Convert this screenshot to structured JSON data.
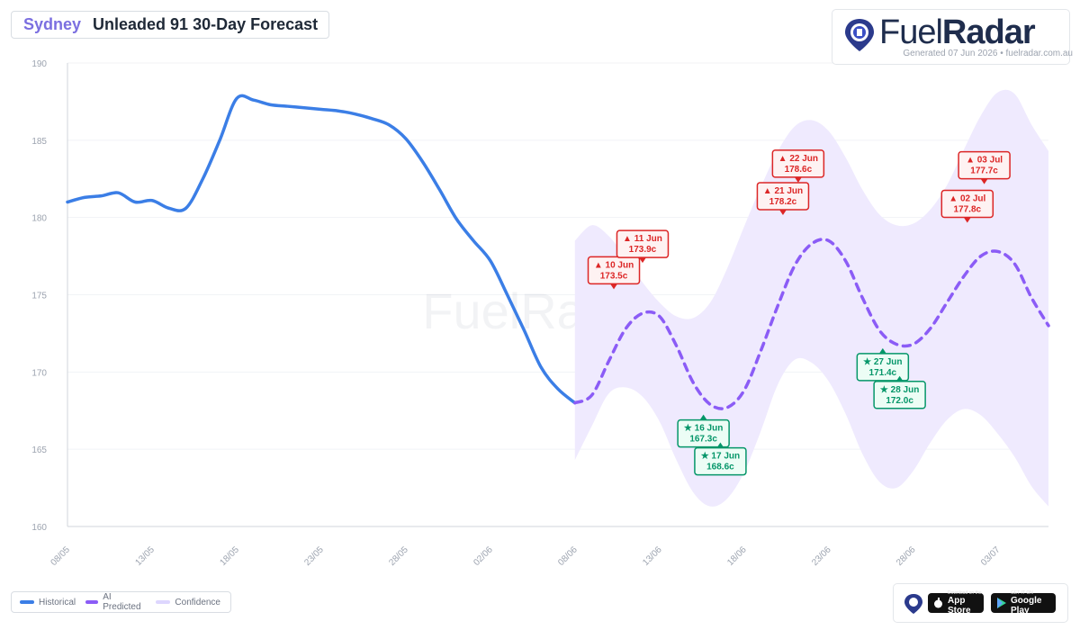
{
  "header": {
    "city": "Sydney",
    "title": "Unleaded 91 30-Day Forecast"
  },
  "brand": {
    "fuel": "Fuel",
    "radar": "Radar",
    "generated": "Generated 07 Jun 2026 • fuelradar.com.au"
  },
  "legend": [
    {
      "label": "Historical",
      "color": "#3b7ee6"
    },
    {
      "label": "AI Predicted",
      "color": "#8b5cf6"
    },
    {
      "label": "Confidence",
      "color": "#ddd6fe"
    }
  ],
  "stores": {
    "apple_small": "Download on the",
    "apple": "App Store",
    "google_small": "GET IT ON",
    "google": "Google Play"
  },
  "colors": {
    "historical": "#3b7ee6",
    "predicted": "#8b5cf6",
    "confidence": "#efeafe",
    "high": "#dc2626",
    "low": "#059669"
  },
  "chart_data": {
    "type": "line",
    "ylim": [
      160,
      190
    ],
    "yticks": [
      "190",
      "185",
      "180",
      "175",
      "170",
      "165",
      "160"
    ],
    "xlim": [
      0,
      58
    ],
    "xticks": [
      {
        "day": 0,
        "label": "08/05"
      },
      {
        "day": 5,
        "label": "13/05"
      },
      {
        "day": 10,
        "label": "18/05"
      },
      {
        "day": 15,
        "label": "23/05"
      },
      {
        "day": 20,
        "label": "28/05"
      },
      {
        "day": 25,
        "label": "02/06"
      },
      {
        "day": 30,
        "label": "08/06"
      },
      {
        "day": 35,
        "label": "13/06"
      },
      {
        "day": 40,
        "label": "18/06"
      },
      {
        "day": 45,
        "label": "23/06"
      },
      {
        "day": 50,
        "label": "28/06"
      },
      {
        "day": 55,
        "label": "03/07"
      }
    ],
    "series": [
      {
        "name": "Historical",
        "points": [
          [
            0,
            181.0
          ],
          [
            1,
            181.3
          ],
          [
            2,
            181.4
          ],
          [
            3,
            181.6
          ],
          [
            4,
            181.0
          ],
          [
            5,
            181.1
          ],
          [
            6,
            180.6
          ],
          [
            7,
            180.6
          ],
          [
            8,
            182.5
          ],
          [
            9,
            185.0
          ],
          [
            10,
            187.7
          ],
          [
            11,
            187.6
          ],
          [
            12,
            187.3
          ],
          [
            13,
            187.2
          ],
          [
            14,
            187.1
          ],
          [
            15,
            187.0
          ],
          [
            16,
            186.9
          ],
          [
            17,
            186.7
          ],
          [
            18,
            186.4
          ],
          [
            19,
            186.0
          ],
          [
            20,
            185.1
          ],
          [
            21,
            183.6
          ],
          [
            22,
            181.8
          ],
          [
            23,
            179.9
          ],
          [
            24,
            178.5
          ],
          [
            25,
            177.2
          ],
          [
            26,
            175.0
          ],
          [
            27,
            172.7
          ],
          [
            28,
            170.3
          ],
          [
            29,
            168.9
          ],
          [
            30,
            168.0
          ]
        ]
      },
      {
        "name": "AI Predicted",
        "points": [
          [
            30,
            168.0
          ],
          [
            31,
            168.5
          ],
          [
            32,
            170.7
          ],
          [
            33,
            172.8
          ],
          [
            34,
            173.8
          ],
          [
            35,
            173.6
          ],
          [
            36,
            171.7
          ],
          [
            37,
            169.3
          ],
          [
            38,
            167.9
          ],
          [
            39,
            167.7
          ],
          [
            40,
            168.8
          ],
          [
            41,
            171.4
          ],
          [
            42,
            174.3
          ],
          [
            43,
            176.9
          ],
          [
            44,
            178.3
          ],
          [
            45,
            178.5
          ],
          [
            46,
            177.2
          ],
          [
            47,
            174.8
          ],
          [
            48,
            172.7
          ],
          [
            49,
            171.8
          ],
          [
            50,
            171.8
          ],
          [
            51,
            172.8
          ],
          [
            52,
            174.5
          ],
          [
            53,
            176.2
          ],
          [
            54,
            177.5
          ],
          [
            55,
            177.8
          ],
          [
            56,
            177.0
          ],
          [
            57,
            174.8
          ],
          [
            58,
            173.0
          ]
        ]
      }
    ],
    "confidence": {
      "upper": [
        [
          30,
          178.5
        ],
        [
          31,
          179.5
        ],
        [
          32,
          178.8
        ],
        [
          33,
          177.4
        ],
        [
          34,
          175.8
        ],
        [
          35,
          174.5
        ],
        [
          36,
          173.6
        ],
        [
          37,
          173.5
        ],
        [
          38,
          174.5
        ],
        [
          39,
          176.7
        ],
        [
          40,
          179.4
        ],
        [
          41,
          182.0
        ],
        [
          42,
          184.3
        ],
        [
          43,
          185.9
        ],
        [
          44,
          186.3
        ],
        [
          45,
          185.6
        ],
        [
          46,
          183.9
        ],
        [
          47,
          181.8
        ],
        [
          48,
          180.2
        ],
        [
          49,
          179.5
        ],
        [
          50,
          179.6
        ],
        [
          51,
          180.5
        ],
        [
          52,
          182.1
        ],
        [
          53,
          184.4
        ],
        [
          54,
          186.6
        ],
        [
          55,
          188.1
        ],
        [
          56,
          188.0
        ],
        [
          57,
          186.0
        ],
        [
          58,
          184.3
        ]
      ],
      "lower": [
        [
          30,
          164.3
        ],
        [
          31,
          166.5
        ],
        [
          32,
          168.6
        ],
        [
          33,
          169.0
        ],
        [
          34,
          168.4
        ],
        [
          35,
          166.8
        ],
        [
          36,
          164.3
        ],
        [
          37,
          162.2
        ],
        [
          38,
          161.3
        ],
        [
          39,
          161.8
        ],
        [
          40,
          163.5
        ],
        [
          41,
          166.2
        ],
        [
          42,
          169.2
        ],
        [
          43,
          170.8
        ],
        [
          44,
          170.6
        ],
        [
          45,
          169.4
        ],
        [
          46,
          167.3
        ],
        [
          47,
          164.7
        ],
        [
          48,
          162.9
        ],
        [
          49,
          162.5
        ],
        [
          50,
          163.6
        ],
        [
          51,
          165.4
        ],
        [
          52,
          166.9
        ],
        [
          53,
          167.6
        ],
        [
          54,
          167.2
        ],
        [
          55,
          166.0
        ],
        [
          56,
          164.5
        ],
        [
          57,
          162.6
        ],
        [
          58,
          161.3
        ]
      ]
    },
    "annotations": [
      {
        "kind": "high",
        "label": "▲ 10 Jun",
        "value": "173.5c",
        "day": 32.3,
        "level": 175.3
      },
      {
        "kind": "high",
        "label": "▲ 11 Jun",
        "value": "173.9c",
        "day": 34.0,
        "level": 177.0
      },
      {
        "kind": "low",
        "label": "★ 16 Jun",
        "value": "167.3c",
        "day": 37.6,
        "level": 167.3
      },
      {
        "kind": "low",
        "label": "★ 17 Jun",
        "value": "168.6c",
        "day": 38.6,
        "level": 165.5
      },
      {
        "kind": "high",
        "label": "▲ 21 Jun",
        "value": "178.2c",
        "day": 42.3,
        "level": 180.1
      },
      {
        "kind": "high",
        "label": "▲ 22 Jun",
        "value": "178.6c",
        "day": 43.2,
        "level": 182.2
      },
      {
        "kind": "low",
        "label": "★ 27 Jun",
        "value": "171.4c",
        "day": 48.2,
        "level": 171.6
      },
      {
        "kind": "low",
        "label": "★ 28 Jun",
        "value": "172.0c",
        "day": 49.2,
        "level": 169.8
      },
      {
        "kind": "high",
        "label": "▲ 02 Jul",
        "value": "177.8c",
        "day": 53.2,
        "level": 179.6
      },
      {
        "kind": "high",
        "label": "▲ 03 Jul",
        "value": "177.7c",
        "day": 54.2,
        "level": 182.1
      }
    ]
  }
}
